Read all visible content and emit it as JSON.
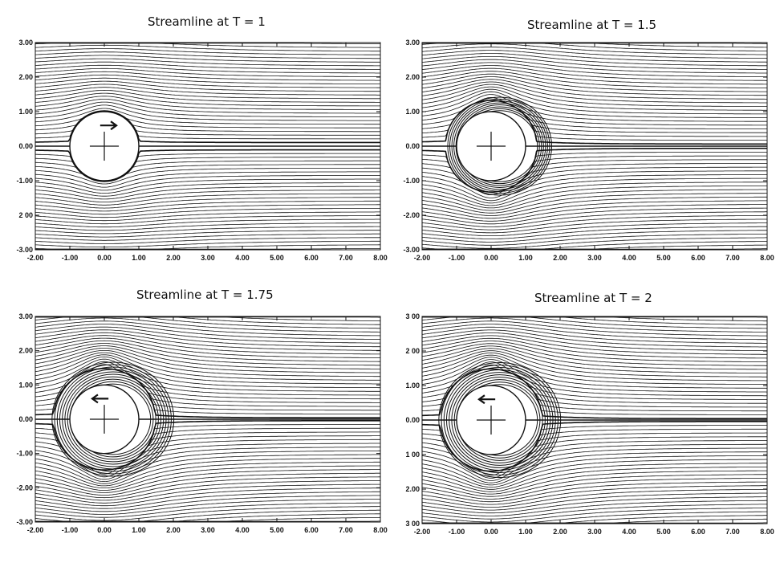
{
  "figure": {
    "panels": [
      {
        "title": "Streamline at T = 1",
        "time": 1,
        "rotation_arrow": "right",
        "x_ticks": [
          "-2.00",
          "-1.00",
          "0.00",
          "1.00",
          "2.00",
          "3.00",
          "4.00",
          "5.00",
          "6.00",
          "7.00",
          "8.00"
        ],
        "y_ticks": [
          "3.00",
          "2.00",
          "1.00",
          "0.00",
          "-1.00",
          "2 00",
          "-3.00"
        ]
      },
      {
        "title": "Streamline at T = 1.5",
        "time": 1.5,
        "rotation_arrow": "none",
        "x_ticks": [
          "-2.00",
          "-1.00",
          "0.00",
          "1.00",
          "2.00",
          "3.00",
          "4.00",
          "5.00",
          "6.00",
          "7.00",
          "8.00"
        ],
        "y_ticks": [
          "3.00",
          "2.00",
          "1.00",
          "0.00",
          "-1.00",
          "-2.00",
          "-3.00"
        ]
      },
      {
        "title": "Streamline at T = 1.75",
        "time": 1.75,
        "rotation_arrow": "left",
        "x_ticks": [
          "-2.00",
          "-1.00",
          "0.00",
          "1.00",
          "2.00",
          "3.00",
          "4.00",
          "5.00",
          "6.00",
          "7.00",
          "8.00"
        ],
        "y_ticks": [
          "3.00",
          "2.00",
          "1.00",
          "0.00",
          "-1.00",
          "-2.00",
          "-3.00"
        ]
      },
      {
        "title": "Streamline at T = 2",
        "time": 2,
        "rotation_arrow": "left",
        "x_ticks": [
          "-2.00",
          "-1.00",
          "0.00",
          "1.00",
          "2.00",
          "3.00",
          "4.00",
          "5.00",
          "6.00",
          "7.00",
          "8.00"
        ],
        "y_ticks": [
          "3 00",
          "2 00",
          "1.00",
          "0.00",
          "1 00",
          "2.00",
          "3 00"
        ]
      }
    ],
    "x_range": [
      -2,
      8
    ],
    "y_range": [
      -3,
      3
    ],
    "cylinder_radius": 1,
    "colors": {
      "line": "#111111",
      "background": "#ffffff"
    }
  }
}
